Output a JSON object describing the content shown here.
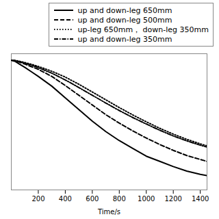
{
  "chart_data": {
    "type": "line",
    "xlabel": "Time/s",
    "x": [
      0,
      30,
      60,
      100,
      150,
      200,
      300,
      400,
      500,
      600,
      700,
      800,
      900,
      1000,
      1100,
      1200,
      1300,
      1400,
      1450
    ],
    "series": [
      {
        "name": "up and down-leg 650mm",
        "color": "#000000",
        "line_style": "solid",
        "values": [
          1.0,
          0.99,
          0.97,
          0.945,
          0.91,
          0.875,
          0.8,
          0.71,
          0.62,
          0.53,
          0.45,
          0.38,
          0.32,
          0.26,
          0.22,
          0.18,
          0.145,
          0.12,
          0.11
        ]
      },
      {
        "name": "up and down-leg 500mm",
        "color": "#000000",
        "line_style": "dashed",
        "values": [
          1.0,
          0.995,
          0.985,
          0.97,
          0.95,
          0.93,
          0.875,
          0.805,
          0.73,
          0.655,
          0.58,
          0.515,
          0.455,
          0.4,
          0.35,
          0.305,
          0.265,
          0.235,
          0.22
        ]
      },
      {
        "name": "up-leg 650mm，  down-leg 350mm",
        "color": "#000000",
        "line_style": "dotted",
        "values": [
          1.0,
          0.998,
          0.992,
          0.982,
          0.968,
          0.952,
          0.915,
          0.87,
          0.815,
          0.755,
          0.695,
          0.635,
          0.578,
          0.525,
          0.475,
          0.43,
          0.39,
          0.355,
          0.34
        ]
      },
      {
        "name": "up and down-leg 350mm",
        "color": "#000000",
        "line_style": "dashdot",
        "values": [
          1.0,
          0.997,
          0.99,
          0.978,
          0.962,
          0.943,
          0.9,
          0.848,
          0.79,
          0.73,
          0.67,
          0.612,
          0.558,
          0.508,
          0.46,
          0.416,
          0.378,
          0.345,
          0.33
        ]
      }
    ],
    "xlim": [
      0,
      1450
    ],
    "ylim": [
      0,
      1.05
    ],
    "xticks": [
      200,
      400,
      600,
      800,
      1000,
      1200,
      1400
    ],
    "tick_labels": "x",
    "legend": "upper right"
  }
}
